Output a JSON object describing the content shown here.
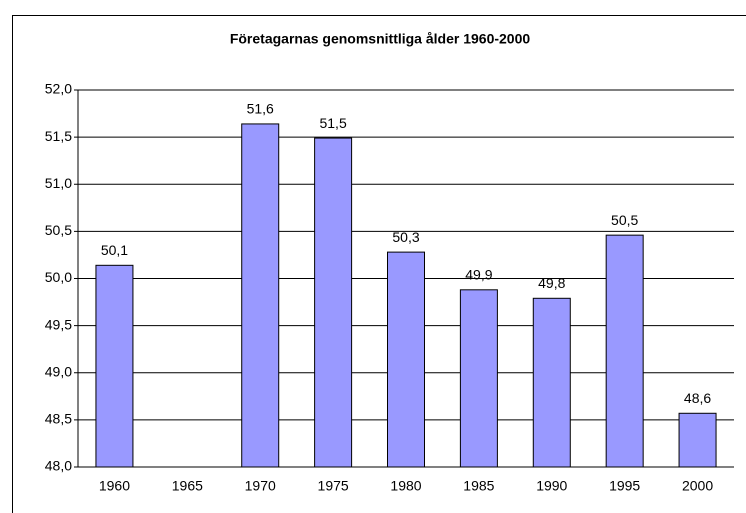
{
  "chart_data": {
    "type": "bar",
    "title": "Företagarnas genomsnittliga ålder 1960-2000",
    "categories": [
      "1960",
      "1965",
      "1970",
      "1975",
      "1980",
      "1985",
      "1990",
      "1995",
      "2000"
    ],
    "values": [
      50.14,
      null,
      51.64,
      51.49,
      50.28,
      49.88,
      49.79,
      50.46,
      48.57
    ],
    "value_labels": [
      "50,1",
      null,
      "51,6",
      "51,5",
      "50,3",
      "49,9",
      "49,8",
      "50,5",
      "48,6"
    ],
    "color": "#9999ff",
    "ylim": [
      48,
      52
    ],
    "yticks": [
      {
        "value": 48,
        "label": "48,0"
      },
      {
        "value": 48.5,
        "label": "48,5"
      },
      {
        "value": 49,
        "label": "49,0"
      },
      {
        "value": 49.5,
        "label": "49,5"
      },
      {
        "value": 50,
        "label": "50,0"
      },
      {
        "value": 50.5,
        "label": "50,5"
      },
      {
        "value": 51,
        "label": "51,0"
      },
      {
        "value": 51.5,
        "label": "51,5"
      },
      {
        "value": 52,
        "label": "52,0"
      }
    ],
    "grid": true
  }
}
